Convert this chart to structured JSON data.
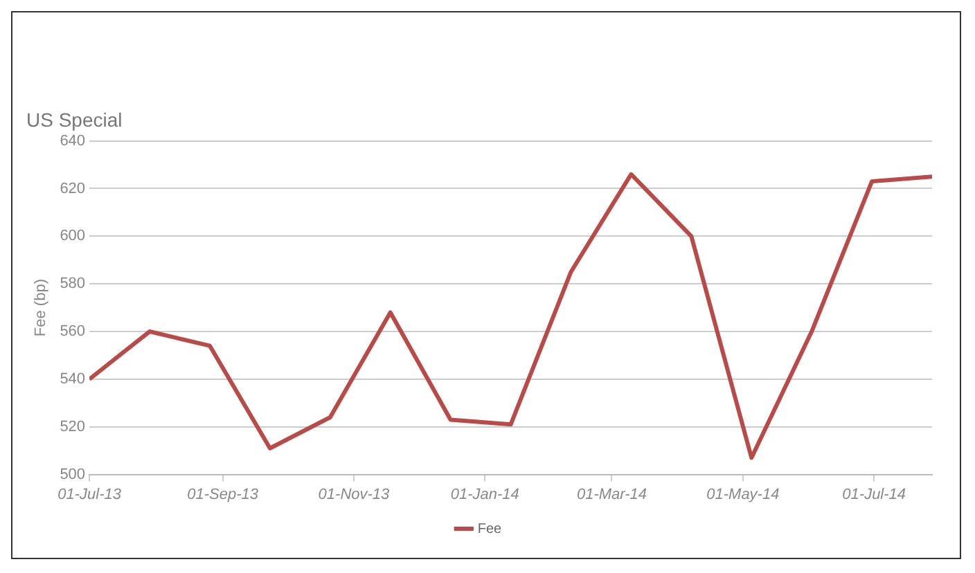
{
  "chart_data": {
    "type": "line",
    "title": "US Special",
    "ylabel": "Fee (bp)",
    "x": [
      "2013-07-01",
      "2013-07-29",
      "2013-08-26",
      "2013-09-23",
      "2013-10-21",
      "2013-11-18",
      "2013-12-16",
      "2014-01-13",
      "2014-02-10",
      "2014-03-10",
      "2014-04-07",
      "2014-05-05",
      "2014-06-02",
      "2014-06-30",
      "2014-07-28"
    ],
    "series": [
      {
        "name": "Fee",
        "color": "#b94a48",
        "values": [
          540,
          560,
          554,
          511,
          524,
          568,
          523,
          521,
          585,
          626,
          600,
          507,
          560,
          623,
          625
        ]
      }
    ],
    "xlim": [
      "2013-07-01",
      "2014-07-28"
    ],
    "xticks": [
      {
        "value": "2013-07-01",
        "label": "01-Jul-13"
      },
      {
        "value": "2013-09-01",
        "label": "01-Sep-13"
      },
      {
        "value": "2013-11-01",
        "label": "01-Nov-13"
      },
      {
        "value": "2014-01-01",
        "label": "01-Jan-14"
      },
      {
        "value": "2014-03-01",
        "label": "01-Mar-14"
      },
      {
        "value": "2014-05-01",
        "label": "01-May-14"
      },
      {
        "value": "2014-07-01",
        "label": "01-Jul-14"
      }
    ],
    "ylim": [
      500,
      640
    ],
    "yticks": [
      500,
      520,
      540,
      560,
      580,
      600,
      620,
      640
    ],
    "grid": "y",
    "legend": "bottom",
    "marker": "none",
    "line_style": "solid"
  }
}
